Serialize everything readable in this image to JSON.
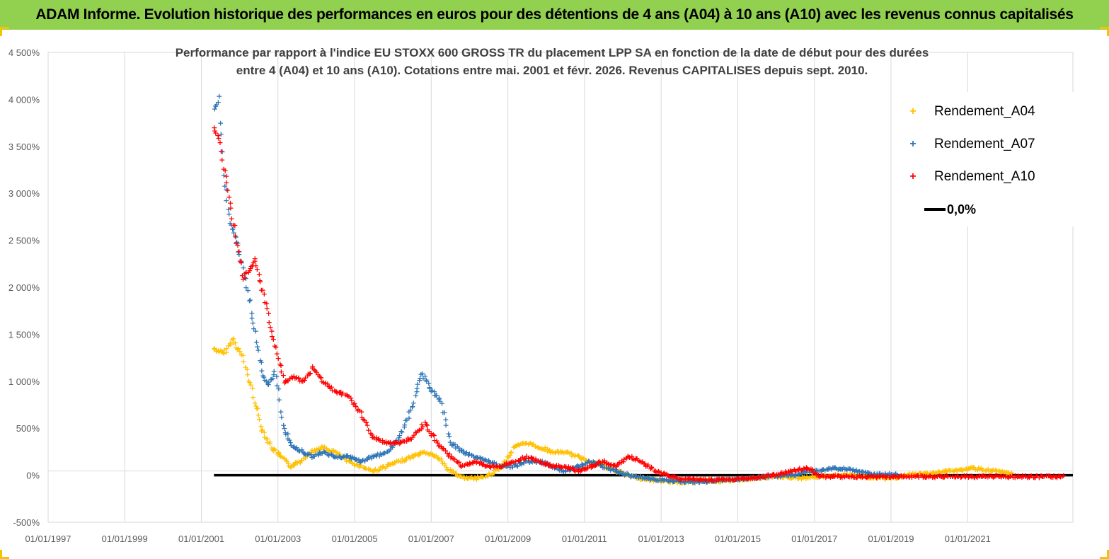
{
  "banner": {
    "title": "ADAM Informe. Evolution historique des performances en euros pour des détentions de 4 ans (A04) à 10 ans (A10) avec les revenus connus capitalisés",
    "color": "#92d050"
  },
  "chart_data": {
    "type": "scatter",
    "title_line1": "Performance par rapport à l'indice EU STOXX 600 GROSS TR  du placement LPP SA en fonction de la date de début pour des durées",
    "title_line2": "entre 4 (A04) et 10 ans (A10).  Cotations entre mai. 2001 et févr. 2026. Revenus CAPITALISES depuis sept. 2010.",
    "xlabel": "",
    "ylabel": "",
    "x_tick_labels": [
      "01/01/1997",
      "01/01/1999",
      "01/01/2001",
      "01/01/2003",
      "01/01/2005",
      "01/01/2007",
      "01/01/2009",
      "01/01/2011",
      "01/01/2013",
      "01/01/2015",
      "01/01/2017",
      "01/01/2019",
      "01/01/2021"
    ],
    "y_tick_labels": [
      "4 500%",
      "4 000%",
      "3 500%",
      "3 000%",
      "2 500%",
      "2 000%",
      "1 500%",
      "1 000%",
      "500%",
      "0%",
      "-500%"
    ],
    "xlim": [
      "1997-01-01",
      "2023-10-01"
    ],
    "ylim": [
      -500,
      4500
    ],
    "grid": "vertical",
    "legend_position": "top-right",
    "series": [
      {
        "name": "Rendement_A04",
        "color": "#ffc000",
        "marker": "+",
        "x": [
          "2001-05-01",
          "2001-08-01",
          "2001-11-01",
          "2002-02-01",
          "2002-05-01",
          "2002-08-01",
          "2002-11-01",
          "2003-02-01",
          "2003-05-01",
          "2003-08-01",
          "2003-11-01",
          "2004-03-01",
          "2004-07-01",
          "2004-11-01",
          "2005-03-01",
          "2005-07-01",
          "2005-11-01",
          "2006-03-01",
          "2006-07-01",
          "2006-11-01",
          "2007-03-01",
          "2007-07-01",
          "2007-11-01",
          "2008-03-01",
          "2008-07-01",
          "2008-11-01",
          "2009-03-01",
          "2009-07-01",
          "2009-11-01",
          "2010-03-01",
          "2010-07-01",
          "2010-11-01",
          "2011-03-01",
          "2011-07-01",
          "2011-11-01",
          "2012-03-01",
          "2012-07-01",
          "2012-11-01",
          "2013-03-01",
          "2013-07-01",
          "2013-11-01",
          "2014-03-01",
          "2014-07-01",
          "2014-11-01",
          "2015-03-01",
          "2015-07-01",
          "2015-11-01",
          "2016-03-01",
          "2016-07-01",
          "2016-11-01",
          "2017-03-01",
          "2017-07-01",
          "2017-11-01",
          "2018-03-01",
          "2018-07-01",
          "2018-11-01",
          "2019-03-01",
          "2019-07-01",
          "2019-11-01",
          "2020-03-01",
          "2020-07-01",
          "2020-11-01",
          "2021-03-01",
          "2021-07-01",
          "2021-11-01",
          "2022-03-01"
        ],
        "y": [
          1350,
          1300,
          1450,
          1250,
          900,
          500,
          300,
          200,
          100,
          150,
          250,
          300,
          250,
          150,
          100,
          50,
          100,
          150,
          200,
          250,
          200,
          50,
          -20,
          -30,
          0,
          100,
          300,
          350,
          300,
          250,
          250,
          200,
          150,
          100,
          50,
          0,
          -30,
          -50,
          -60,
          -70,
          -60,
          -50,
          -60,
          -50,
          -40,
          -30,
          -20,
          -10,
          -30,
          -20,
          -10,
          0,
          10,
          -10,
          -20,
          -30,
          -20,
          10,
          20,
          30,
          50,
          60,
          80,
          60,
          40,
          20
        ]
      },
      {
        "name": "Rendement_A07",
        "color": "#2e75b6",
        "marker": "+",
        "x": [
          "2001-05-01",
          "2001-06-15",
          "2001-08-01",
          "2001-10-01",
          "2001-12-01",
          "2002-02-01",
          "2002-04-01",
          "2002-06-01",
          "2002-08-01",
          "2002-10-01",
          "2002-12-01",
          "2003-03-01",
          "2003-06-01",
          "2003-09-01",
          "2003-12-01",
          "2004-03-01",
          "2004-07-01",
          "2004-11-01",
          "2005-03-01",
          "2005-07-01",
          "2005-11-01",
          "2006-03-01",
          "2006-07-01",
          "2006-10-01",
          "2007-01-01",
          "2007-04-01",
          "2007-07-01",
          "2007-11-01",
          "2008-03-01",
          "2008-07-01",
          "2008-11-01",
          "2009-03-01",
          "2009-07-01",
          "2009-11-01",
          "2010-03-01",
          "2010-07-01",
          "2010-11-01",
          "2011-03-01",
          "2011-07-01",
          "2011-11-01",
          "2012-03-01",
          "2012-07-01",
          "2012-11-01",
          "2013-03-01",
          "2013-07-01",
          "2013-11-01",
          "2014-03-01",
          "2014-07-01",
          "2014-11-01",
          "2015-03-01",
          "2015-07-01",
          "2015-11-01",
          "2016-03-01",
          "2016-07-01",
          "2016-11-01",
          "2017-03-01",
          "2017-07-01",
          "2017-11-01",
          "2018-03-01",
          "2018-07-01",
          "2018-11-01",
          "2019-03-01"
        ],
        "y": [
          3900,
          4000,
          3200,
          2700,
          2500,
          2200,
          1900,
          1500,
          1100,
          950,
          1100,
          500,
          300,
          250,
          200,
          250,
          200,
          200,
          150,
          200,
          250,
          400,
          700,
          1100,
          900,
          800,
          350,
          250,
          200,
          150,
          100,
          100,
          150,
          150,
          100,
          50,
          100,
          150,
          100,
          50,
          0,
          -20,
          -40,
          -50,
          -60,
          -70,
          -60,
          -50,
          -40,
          -30,
          -20,
          -10,
          0,
          10,
          40,
          60,
          80,
          70,
          40,
          20,
          10,
          20
        ]
      },
      {
        "name": "Rendement_A10",
        "color": "#ff0000",
        "marker": "+",
        "x": [
          "2001-05-01",
          "2001-06-15",
          "2001-08-01",
          "2001-10-01",
          "2001-12-01",
          "2002-02-01",
          "2002-04-01",
          "2002-06-01",
          "2002-08-01",
          "2002-10-01",
          "2002-12-01",
          "2003-03-01",
          "2003-06-01",
          "2003-09-01",
          "2003-12-01",
          "2004-03-01",
          "2004-07-01",
          "2004-11-01",
          "2005-03-01",
          "2005-07-01",
          "2005-11-01",
          "2006-03-01",
          "2006-07-01",
          "2006-11-01",
          "2007-03-01",
          "2007-07-01",
          "2007-11-01",
          "2008-03-01",
          "2008-07-01",
          "2008-11-01",
          "2009-03-01",
          "2009-07-01",
          "2009-11-01",
          "2010-03-01",
          "2010-07-01",
          "2010-11-01",
          "2011-03-01",
          "2011-07-01",
          "2011-11-01",
          "2012-03-01",
          "2012-07-01",
          "2012-11-01",
          "2013-03-01",
          "2013-07-01",
          "2013-11-01",
          "2014-03-01",
          "2014-07-01",
          "2014-11-01",
          "2015-03-01",
          "2015-07-01",
          "2015-11-01",
          "2016-03-01",
          "2016-07-01",
          "2016-11-01",
          "2017-03-01",
          "2017-07-01",
          "2017-11-01",
          "2018-03-01",
          "2018-07-01",
          "2018-11-01",
          "2019-03-01",
          "2019-07-01",
          "2019-11-01",
          "2020-03-01",
          "2020-07-01",
          "2020-11-01",
          "2021-03-01",
          "2021-07-01",
          "2021-11-01",
          "2022-03-01",
          "2022-07-01",
          "2022-11-01",
          "2023-03-01",
          "2023-07-01"
        ],
        "y": [
          3700,
          3600,
          3300,
          2900,
          2500,
          2100,
          2200,
          2300,
          2000,
          1700,
          1400,
          1000,
          1050,
          1000,
          1150,
          1000,
          900,
          850,
          650,
          400,
          350,
          350,
          400,
          550,
          350,
          200,
          100,
          150,
          100,
          100,
          150,
          200,
          150,
          100,
          100,
          50,
          100,
          150,
          100,
          200,
          150,
          50,
          0,
          -30,
          -40,
          -50,
          -40,
          -40,
          -30,
          -20,
          0,
          20,
          60,
          80,
          -10,
          -10,
          -10,
          -10,
          -10,
          -10,
          -10,
          -10,
          -10,
          -10,
          -10,
          -10,
          -10,
          -10,
          -10,
          -10,
          -10,
          -10,
          -10,
          -10
        ]
      },
      {
        "name": "0,0%",
        "color": "#000000",
        "marker": "line",
        "x": [
          "2001-05-01",
          "2023-10-01"
        ],
        "y": [
          0,
          0
        ]
      }
    ]
  }
}
